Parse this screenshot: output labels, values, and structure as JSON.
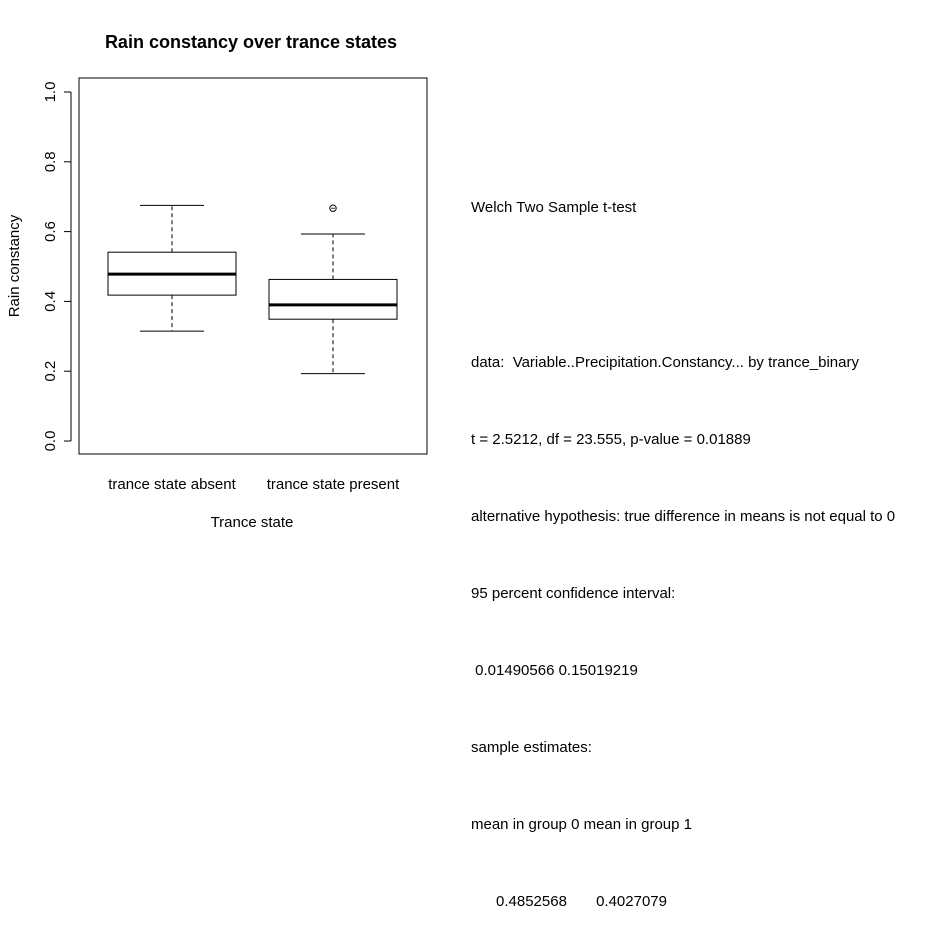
{
  "chart_data": {
    "type": "boxplot",
    "title": "Rain constancy over trance states",
    "xlabel": "Trance state",
    "ylabel": "Rain constancy",
    "ylim": [
      0.0,
      1.0
    ],
    "yticks": [
      "0.0",
      "0.2",
      "0.4",
      "0.6",
      "0.8",
      "1.0"
    ],
    "categories": [
      "trance state absent",
      "trance state present"
    ],
    "boxes": [
      {
        "min": 0.315,
        "q1": 0.418,
        "median": 0.478,
        "q3": 0.541,
        "max": 0.675,
        "outliers": []
      },
      {
        "min": 0.193,
        "q1": 0.349,
        "median": 0.39,
        "q3": 0.463,
        "max": 0.593,
        "outliers": [
          0.667
        ]
      }
    ],
    "grid": false
  },
  "stats": {
    "lines": [
      "Welch Two Sample t-test",
      "",
      "data:  Variable..Precipitation.Constancy... by trance_binary",
      "t = 2.5212, df = 23.555, p-value = 0.01889",
      "alternative hypothesis: true difference in means is not equal to 0",
      "95 percent confidence interval:",
      " 0.01490566 0.15019219",
      "sample estimates:",
      "mean in group 0 mean in group 1",
      "      0.4852568       0.4027079"
    ]
  }
}
